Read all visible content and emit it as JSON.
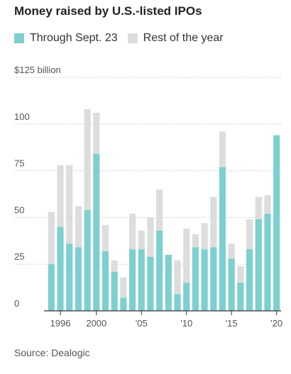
{
  "chart_data": {
    "type": "bar",
    "title": "Money raised by U.S.-listed IPOs",
    "source": "Source: Dealogic",
    "stacked": true,
    "ylim": [
      0,
      125
    ],
    "y_ticks": [
      0,
      25,
      50,
      75,
      100,
      125
    ],
    "y_tick_labels": [
      "0",
      "25",
      "50",
      "75",
      "100",
      "$125 billion"
    ],
    "categories": [
      1995,
      1996,
      1997,
      1998,
      1999,
      2000,
      2001,
      2002,
      2003,
      2004,
      2005,
      2006,
      2007,
      2008,
      2009,
      2010,
      2011,
      2012,
      2013,
      2014,
      2015,
      2016,
      2017,
      2018,
      2019,
      2020
    ],
    "x_tick_years": [
      1996,
      2000,
      2005,
      2010,
      2015,
      2020
    ],
    "x_tick_labels": [
      "1996",
      "2000",
      "'05",
      "'10",
      "'15",
      "'20"
    ],
    "series": [
      {
        "name": "Through Sept. 23",
        "color": "#7dd0cf",
        "values": [
          25,
          45,
          36,
          34,
          54,
          84,
          32,
          21,
          7,
          33,
          33,
          29,
          43,
          30,
          9,
          15,
          34,
          33,
          34,
          77,
          28,
          15,
          33,
          49,
          52,
          94
        ]
      },
      {
        "name": "Rest of the year",
        "color": "#dddddd",
        "values": [
          28,
          33,
          42,
          22,
          54,
          22,
          14,
          6,
          11,
          19,
          10,
          21,
          22,
          0,
          18,
          29,
          7,
          14,
          27,
          19,
          8,
          9,
          16,
          12,
          10,
          0
        ]
      }
    ],
    "grid": "horizontal",
    "legend_position": "top-left"
  }
}
